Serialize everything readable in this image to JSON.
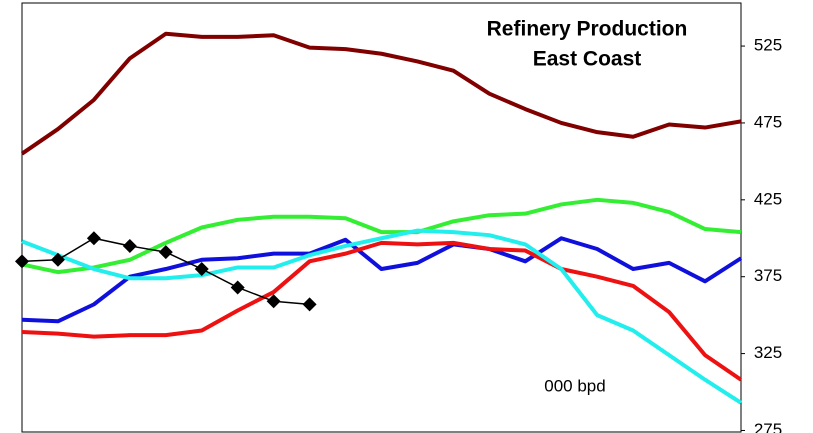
{
  "chart_data": {
    "type": "line",
    "title": [
      "Refinery Production",
      "East Coast"
    ],
    "annotation": "000 bpd",
    "categories": [
      null,
      null,
      null,
      null,
      null,
      null,
      null,
      null,
      null,
      null,
      null,
      null,
      null,
      null,
      null,
      null,
      null,
      null,
      null,
      null,
      null
    ],
    "series": [
      {
        "color": "#800000",
        "values": [
          455,
          471,
          490,
          517,
          533,
          531,
          531,
          532,
          524,
          523,
          520,
          515,
          509,
          494,
          484,
          475,
          469,
          466,
          474,
          472,
          476
        ]
      },
      {
        "color": "#33ee33",
        "values": [
          383,
          378,
          381,
          386,
          397,
          407,
          412,
          414,
          414,
          413,
          404,
          404,
          411,
          415,
          416,
          422,
          425,
          423,
          417,
          406,
          404
        ]
      },
      {
        "color": "#1010dd",
        "values": [
          347,
          346,
          357,
          375,
          380,
          386,
          387,
          390,
          390,
          399,
          380,
          384,
          396,
          393,
          385,
          400,
          393,
          380,
          384,
          372,
          387
        ]
      },
      {
        "color": "#ee1111",
        "values": [
          339,
          338,
          336,
          337,
          337,
          340,
          353,
          365,
          385,
          390,
          397,
          396,
          397,
          393,
          392,
          380,
          375,
          369,
          352,
          324,
          308
        ]
      },
      {
        "color": "#22eeee",
        "values": [
          398,
          389,
          380,
          374,
          374,
          376,
          381,
          381,
          389,
          395,
          400,
          405,
          404,
          402,
          396,
          380,
          350,
          340,
          324,
          308,
          293
        ]
      },
      {
        "color": "#000000",
        "marker": "diamond",
        "values": [
          385,
          386,
          400,
          395,
          391,
          380,
          368,
          359,
          357,
          null,
          null,
          null,
          null,
          null,
          null,
          null,
          null,
          null,
          null,
          null,
          null
        ]
      }
    ],
    "ylim": [
      274,
      553
    ],
    "yticks": [
      275,
      325,
      375,
      425,
      475,
      525
    ],
    "y_axis_side": "right"
  }
}
